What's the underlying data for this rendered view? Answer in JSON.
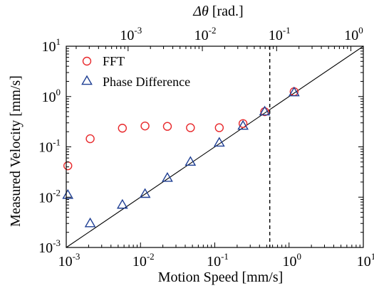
{
  "chart_data": {
    "type": "scatter",
    "x_scale": "log",
    "y_scale": "log",
    "xlabel": "Motion Speed [mm/s]",
    "ylabel": "Measured Velocity [mm/s]",
    "top_xlabel_symbol": "Δθ",
    "top_xlabel_unit": " [rad.]",
    "xlim": [
      0.001,
      10
    ],
    "ylim": [
      0.001,
      10
    ],
    "x_ticks": [
      {
        "base": "10",
        "exp": "-3",
        "value": 0.001
      },
      {
        "base": "10",
        "exp": "-2",
        "value": 0.01
      },
      {
        "base": "10",
        "exp": "-1",
        "value": 0.1
      },
      {
        "base": "10",
        "exp": "0",
        "value": 1
      },
      {
        "base": "10",
        "exp": "1",
        "value": 10
      }
    ],
    "y_ticks": [
      {
        "base": "10",
        "exp": "-3",
        "value": 0.001
      },
      {
        "base": "10",
        "exp": "-2",
        "value": 0.01
      },
      {
        "base": "10",
        "exp": "-1",
        "value": 0.1
      },
      {
        "base": "10",
        "exp": "0",
        "value": 1
      },
      {
        "base": "10",
        "exp": "1",
        "value": 10
      }
    ],
    "top_ticks": [
      {
        "base": "10",
        "exp": "-3",
        "value": 0.001
      },
      {
        "base": "10",
        "exp": "-2",
        "value": 0.01
      },
      {
        "base": "10",
        "exp": "-1",
        "value": 0.1
      },
      {
        "base": "10",
        "exp": "0",
        "value": 1
      }
    ],
    "top_axis_scale_factor": 0.147,
    "reference_line": {
      "type": "y=x"
    },
    "vertical_dashed_line_x": 0.55,
    "legend_placement": "top-left",
    "series": [
      {
        "name": "FFT",
        "marker": "circle",
        "color": "#e8282b",
        "points": [
          [
            0.00105,
            0.042
          ],
          [
            0.0021,
            0.145
          ],
          [
            0.0057,
            0.235
          ],
          [
            0.0115,
            0.26
          ],
          [
            0.023,
            0.255
          ],
          [
            0.047,
            0.24
          ],
          [
            0.115,
            0.24
          ],
          [
            0.24,
            0.29
          ],
          [
            0.47,
            0.5
          ],
          [
            1.17,
            1.25
          ]
        ]
      },
      {
        "name": "Phase Difference",
        "marker": "triangle",
        "color": "#1f3f93",
        "points": [
          [
            0.00105,
            0.011
          ],
          [
            0.0021,
            0.003
          ],
          [
            0.0057,
            0.007
          ],
          [
            0.0115,
            0.0115
          ],
          [
            0.023,
            0.024
          ],
          [
            0.047,
            0.05
          ],
          [
            0.115,
            0.12
          ],
          [
            0.24,
            0.26
          ],
          [
            0.47,
            0.5
          ],
          [
            1.17,
            1.2
          ]
        ]
      }
    ]
  }
}
